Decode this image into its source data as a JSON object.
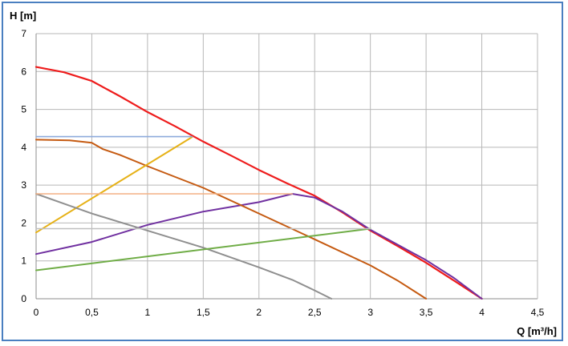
{
  "chart_data": {
    "type": "line",
    "xlabel": "Q [m³/h]",
    "ylabel": "H [m]",
    "xlim": [
      0,
      4.5
    ],
    "ylim": [
      0,
      7
    ],
    "x_ticks": [
      "0",
      "0,5",
      "1",
      "1,5",
      "2",
      "2,5",
      "3",
      "3,5",
      "4",
      "4,5"
    ],
    "y_ticks": [
      "0",
      "1",
      "2",
      "3",
      "4",
      "5",
      "6",
      "7"
    ],
    "x_tick_values": [
      0,
      0.5,
      1,
      1.5,
      2,
      2.5,
      3,
      3.5,
      4,
      4.5
    ],
    "y_tick_values": [
      0,
      1,
      2,
      3,
      4,
      5,
      6,
      7
    ],
    "grid": true,
    "legend": "none",
    "series": [
      {
        "color": "#ee1c1c",
        "width": 2.2,
        "points": [
          [
            0,
            6.12
          ],
          [
            0.25,
            5.98
          ],
          [
            0.5,
            5.75
          ],
          [
            0.75,
            5.35
          ],
          [
            1,
            4.93
          ],
          [
            1.25,
            4.55
          ],
          [
            1.5,
            4.15
          ],
          [
            1.75,
            3.78
          ],
          [
            2,
            3.4
          ],
          [
            2.25,
            3.05
          ],
          [
            2.5,
            2.72
          ],
          [
            2.75,
            2.28
          ],
          [
            3,
            1.8
          ],
          [
            3.25,
            1.38
          ],
          [
            3.5,
            0.95
          ],
          [
            3.75,
            0.48
          ],
          [
            4,
            0
          ]
        ]
      },
      {
        "color": "#7030a0",
        "width": 2.0,
        "points": [
          [
            0,
            1.18
          ],
          [
            0.5,
            1.5
          ],
          [
            1,
            1.95
          ],
          [
            1.5,
            2.3
          ],
          [
            2,
            2.55
          ],
          [
            2.3,
            2.77
          ],
          [
            2.5,
            2.67
          ],
          [
            2.75,
            2.3
          ],
          [
            3,
            1.82
          ],
          [
            3.25,
            1.42
          ],
          [
            3.5,
            1.02
          ],
          [
            3.75,
            0.55
          ],
          [
            4,
            0
          ]
        ]
      },
      {
        "color": "#c55a11",
        "width": 2.0,
        "points": [
          [
            0,
            4.2
          ],
          [
            0.3,
            4.18
          ],
          [
            0.5,
            4.12
          ],
          [
            0.6,
            3.95
          ],
          [
            0.75,
            3.8
          ],
          [
            1,
            3.5
          ],
          [
            1.5,
            2.93
          ],
          [
            2,
            2.25
          ],
          [
            2.5,
            1.57
          ],
          [
            3,
            0.88
          ],
          [
            3.25,
            0.47
          ],
          [
            3.5,
            0
          ]
        ]
      },
      {
        "color": "#e6b116",
        "width": 2.0,
        "points": [
          [
            0,
            1.75
          ],
          [
            1.4,
            4.27
          ]
        ]
      },
      {
        "color": "#8f8f8f",
        "width": 2.0,
        "points": [
          [
            0,
            2.77
          ],
          [
            0.5,
            2.25
          ],
          [
            1,
            1.8
          ],
          [
            1.5,
            1.35
          ],
          [
            2,
            0.83
          ],
          [
            2.3,
            0.5
          ],
          [
            2.5,
            0.22
          ],
          [
            2.65,
            0
          ]
        ]
      },
      {
        "color": "#70ad47",
        "width": 2.0,
        "points": [
          [
            0,
            0.75
          ],
          [
            3,
            1.85
          ]
        ]
      },
      {
        "color": "#8eaadb",
        "width": 1.6,
        "points": [
          [
            0,
            4.28
          ],
          [
            1.4,
            4.28
          ]
        ]
      },
      {
        "color": "#f4b183",
        "width": 1.6,
        "points": [
          [
            0,
            2.77
          ],
          [
            2.3,
            2.77
          ]
        ]
      },
      {
        "color": "#bfbfbf",
        "width": 1.6,
        "points": [
          [
            0,
            1.85
          ],
          [
            3,
            1.85
          ]
        ]
      }
    ]
  }
}
